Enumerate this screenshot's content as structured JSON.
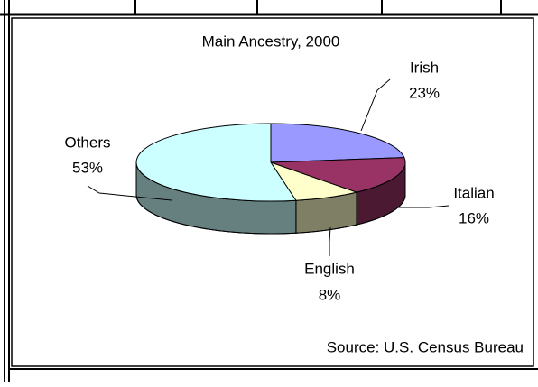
{
  "chart_data": {
    "type": "pie3d",
    "title": "Main Ancestry, 2000",
    "categories": [
      "Irish",
      "Italian",
      "English",
      "Others"
    ],
    "values": [
      23,
      16,
      8,
      53
    ],
    "value_labels": [
      "23%",
      "16%",
      "8%",
      "53%"
    ],
    "colors": [
      "#9999ff",
      "#993366",
      "#ffffcc",
      "#ccffff"
    ],
    "source": "Source: U.S. Census Bureau"
  }
}
